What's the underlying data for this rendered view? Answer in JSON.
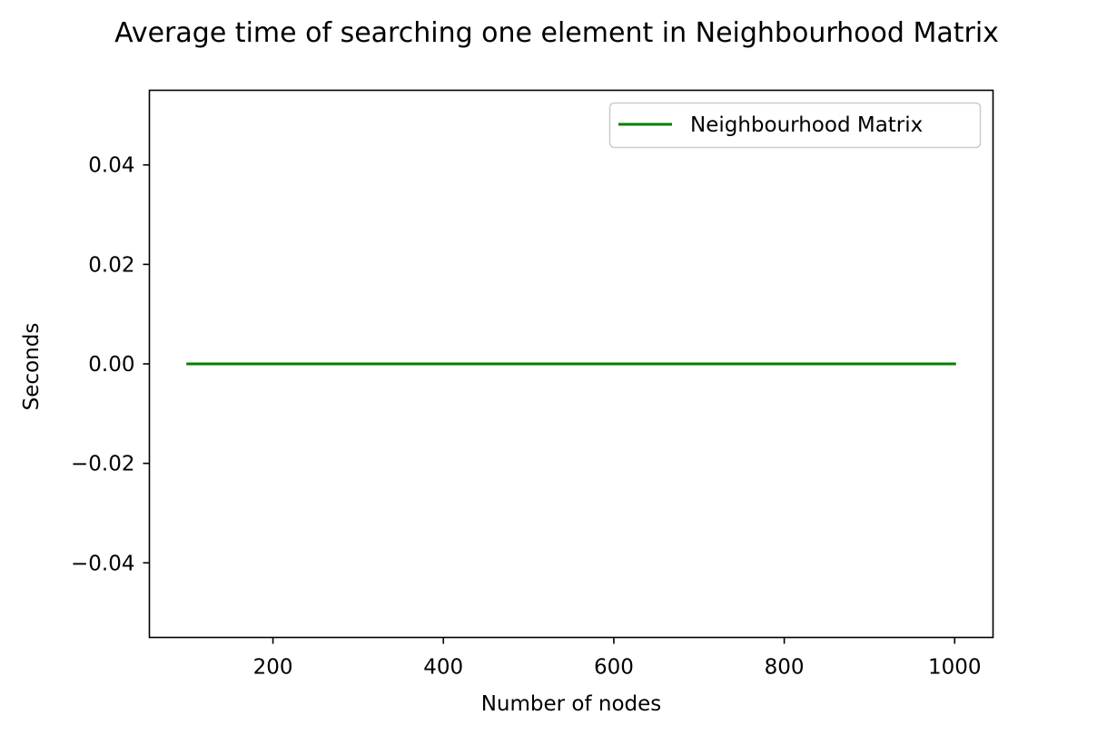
{
  "chart_data": {
    "type": "line",
    "title": "Average time of searching one element in Neighbourhood Matrix",
    "xlabel": "Number of nodes",
    "ylabel": "Seconds",
    "xlim": [
      55,
      1045
    ],
    "ylim": [
      -0.055,
      0.055
    ],
    "x_ticks": [
      200,
      400,
      600,
      800,
      1000
    ],
    "x_tick_labels": [
      "200",
      "400",
      "600",
      "800",
      "1000"
    ],
    "y_ticks": [
      0.04,
      0.02,
      0.0,
      -0.02,
      -0.04
    ],
    "y_tick_labels": [
      "0.04",
      "0.02",
      "0.00",
      "−0.02",
      "−0.04"
    ],
    "grid": false,
    "legend_position": "top-right",
    "series": [
      {
        "name": "Neighbourhood Matrix",
        "color": "#008000",
        "x": [
          100,
          200,
          300,
          400,
          500,
          600,
          700,
          800,
          900,
          1000
        ],
        "y": [
          0,
          0,
          0,
          0,
          0,
          0,
          0,
          0,
          0,
          0
        ]
      }
    ]
  }
}
